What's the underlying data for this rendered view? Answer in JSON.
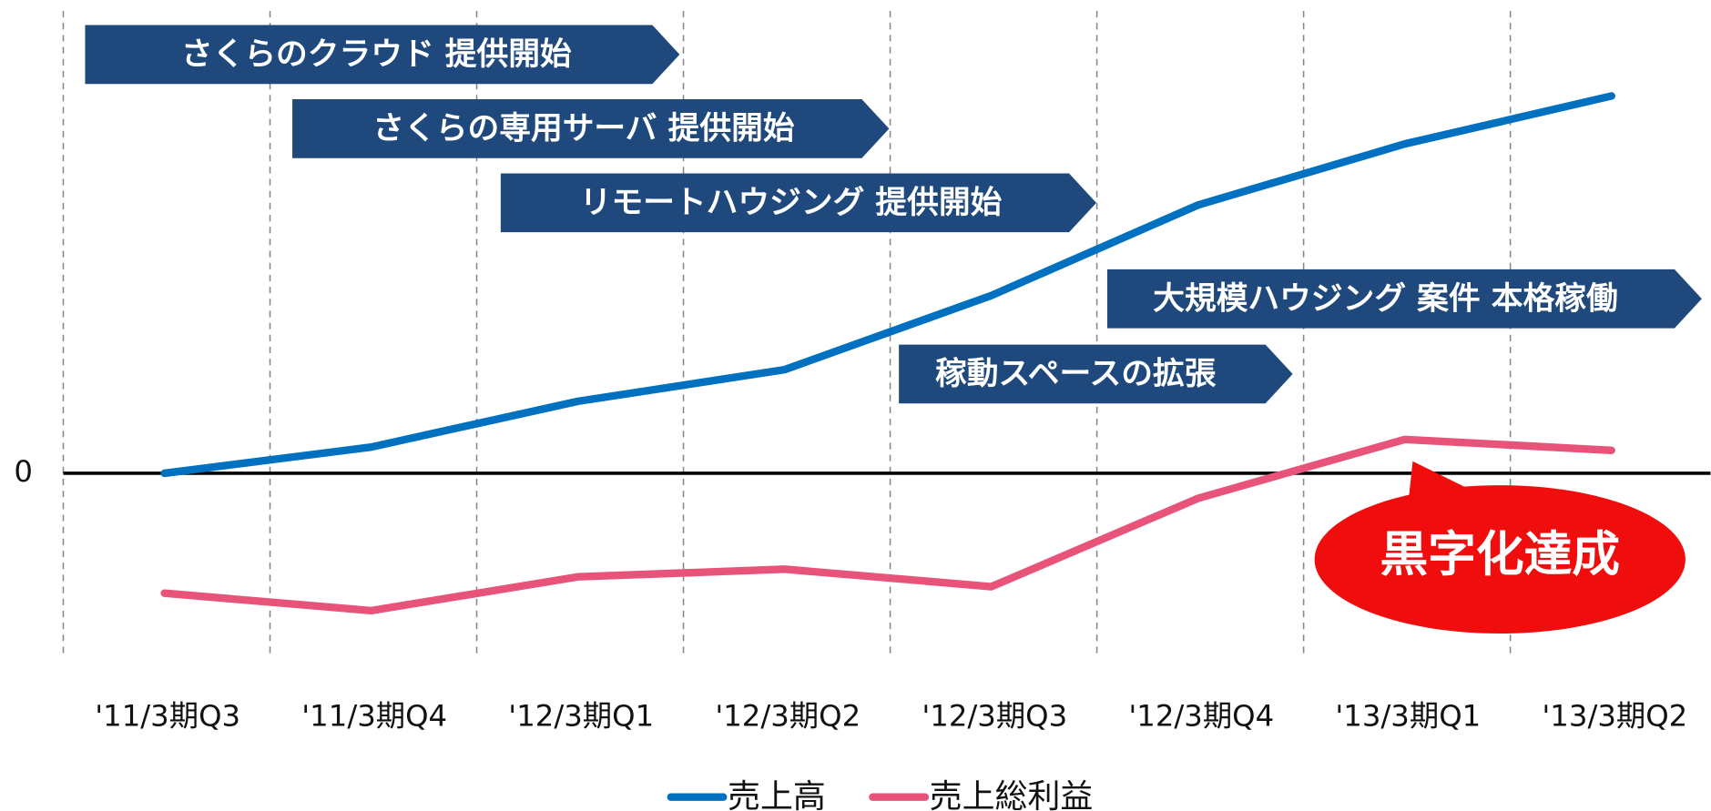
{
  "chart_data": {
    "type": "line",
    "categories": [
      "'11/3期Q3",
      "'11/3期Q4",
      "'12/3期Q1",
      "'12/3期Q2",
      "'12/3期Q3",
      "'12/3期Q4",
      "'13/3期Q1",
      "'13/3期Q2"
    ],
    "series": [
      {
        "name": "売上高",
        "color": "#0070c0",
        "values": [
          0,
          24,
          66,
          95,
          163,
          246,
          302,
          346
        ]
      },
      {
        "name": "売上総利益",
        "color": "#e8537a",
        "values": [
          -110,
          -126,
          -95,
          -88,
          -104,
          -23,
          31,
          21
        ]
      }
    ],
    "ylim": [
      -166,
      424
    ],
    "yticks": [
      0
    ],
    "annotations": [
      "さくらのクラウド 提供開始",
      "さくらの専用サーバ 提供開始",
      "リモートハウジング 提供開始",
      "大規模ハウジング 案件 本格稼働",
      "稼動スペースの拡張"
    ],
    "callout": "黒字化達成",
    "banner_color": "#1f497d",
    "callout_color": "#f00d0d",
    "legend": "bottom"
  }
}
